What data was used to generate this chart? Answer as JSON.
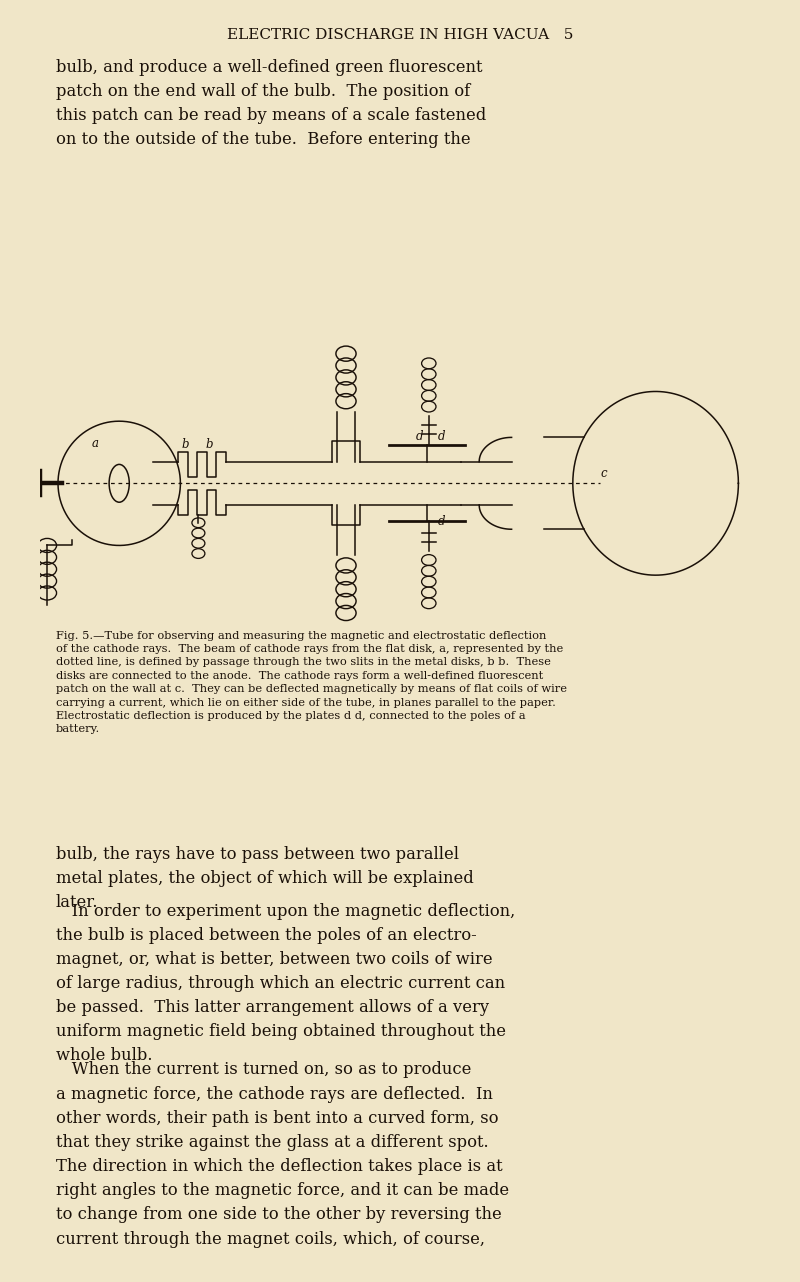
{
  "bg_color": "#f0e6c8",
  "text_color": "#1a1008",
  "page_width": 8.0,
  "page_height": 12.82,
  "header_text": "ELECTRIC DISCHARGE IN HIGH VACUA   5",
  "para1": "bulb, and produce a well-defined green fluorescent\npatch on the end wall of the bulb.  The position of\nthis patch can be read by means of a scale fastened\non to the outside of the tube.  Before entering the",
  "para2": "bulb, the rays have to pass between two parallel\nmetal plates, the object of which will be explained\nlater.",
  "para3": "   In order to experiment upon the magnetic deflection,\nthe bulb is placed between the poles of an electro-\nmagnet, or, what is better, between two coils of wire\nof large radius, through which an electric current can\nbe passed.  This latter arrangement allows of a very\nuniform magnetic field being obtained throughout the\nwhole bulb.",
  "para4": "   When the current is turned on, so as to produce\na magnetic force, the cathode rays are deflected.  In\nother words, their path is bent into a curved form, so\nthat they strike against the glass at a different spot.\nThe direction in which the deflection takes place is at\nright angles to the magnetic force, and it can be made\nto change from one side to the other by reversing the\ncurrent through the magnet coils, which, of course,",
  "fig_caption": "Fig. 5.—Tube for observing and measuring the magnetic and electrostatic deflection\nof the cathode rays.  The beam of cathode rays from the flat disk, a, represented by the\ndotted line, is defined by passage through the two slits in the metal disks, b b.  These\ndisks are connected to the anode.  The cathode rays form a well-defined fluorescent\npatch on the wall at c.  They can be deflected magnetically by means of flat coils of wire\ncarrying a current, which lie on either side of the tube, in planes parallel to the paper.\nElectrostatic deflection is produced by the plates d d, connected to the poles of a\nbattery."
}
